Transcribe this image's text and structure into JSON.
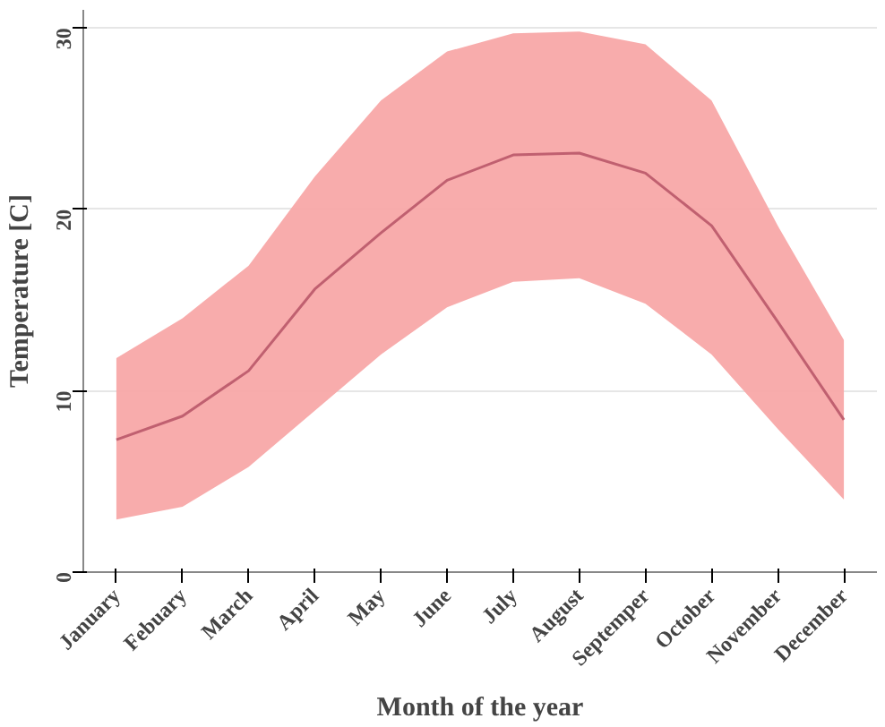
{
  "chart_data": {
    "type": "line",
    "xlabel": "Month of the year",
    "ylabel": "Temperature [C]",
    "categories": [
      "January",
      "Febuary",
      "March",
      "April",
      "May",
      "June",
      "July",
      "August",
      "Septemper",
      "October",
      "November",
      "December"
    ],
    "series": [
      {
        "color": "#c06070",
        "values": [
          7.3,
          8.6,
          11.1,
          15.6,
          18.7,
          21.6,
          23.0,
          23.1,
          22.0,
          19.1,
          13.8,
          8.4
        ],
        "lower": [
          2.9,
          3.6,
          5.8,
          8.9,
          12.0,
          14.6,
          16.0,
          16.2,
          14.8,
          12.0,
          7.9,
          4.0
        ],
        "upper": [
          11.8,
          14.0,
          16.9,
          21.8,
          26.0,
          28.7,
          29.7,
          29.8,
          29.1,
          26.0,
          19.1,
          12.8
        ]
      }
    ],
    "ylim": [
      0,
      31
    ],
    "yticks": [
      0,
      10,
      20,
      30
    ],
    "grid": "y",
    "marker": "none",
    "line_style": "solid"
  }
}
